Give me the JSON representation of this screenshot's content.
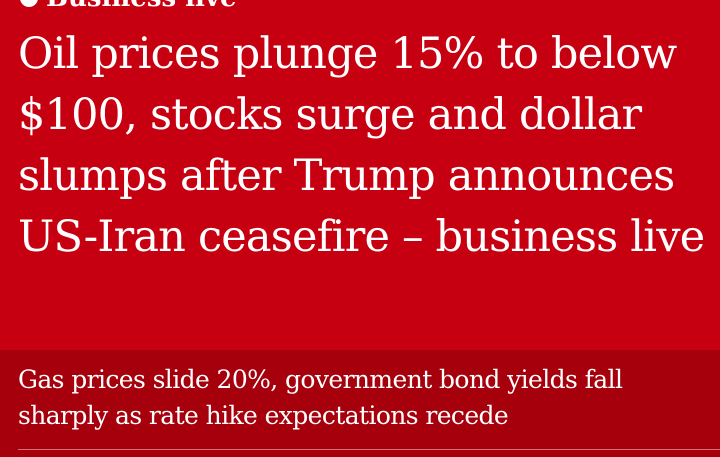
{
  "kicker": {
    "label": "Business live"
  },
  "headline": {
    "text": "Oil prices plunge 15% to below $100, stocks surge and dollar slumps after Trump announces US-Iran ceasefire – business live"
  },
  "standfirst": {
    "text": "Gas prices slide 20%, government bond yields fall sharply as rate hike expectations recede"
  },
  "colors": {
    "headline_background": "#c70011",
    "standfirst_background": "#a6000c",
    "text": "#ffffff"
  }
}
